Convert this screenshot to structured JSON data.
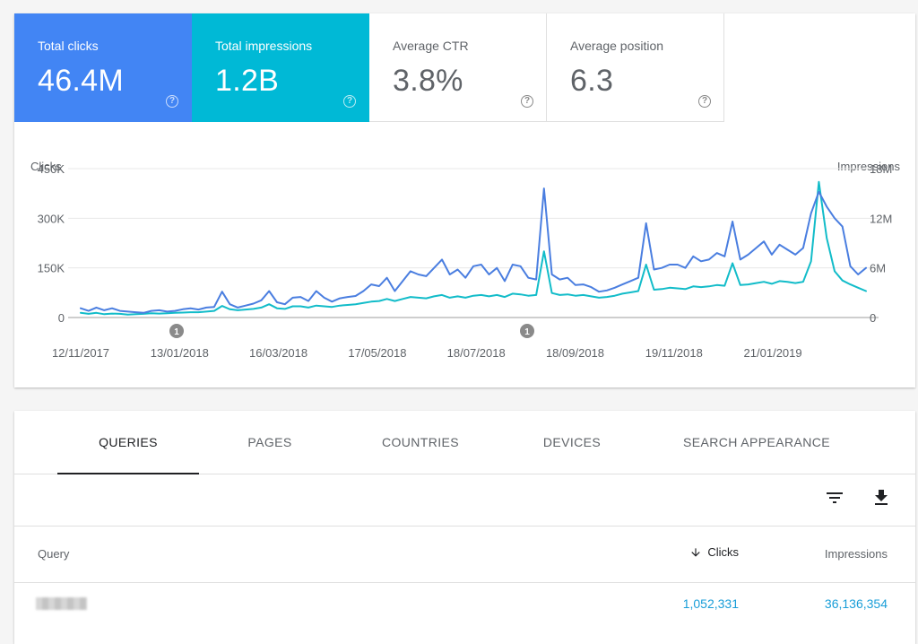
{
  "metrics": [
    {
      "label": "Total clicks",
      "value": "46.4M",
      "color": "#4285f4"
    },
    {
      "label": "Total impressions",
      "value": "1.2B",
      "color": "#00b9d6"
    },
    {
      "label": "Average CTR",
      "value": "3.8%"
    },
    {
      "label": "Average position",
      "value": "6.3"
    }
  ],
  "help_icon": "help-circle-icon",
  "annotation_label": "1",
  "chart_data": {
    "type": "line",
    "ylabel_left": "Clicks",
    "ylabel_right": "Impressions",
    "left_ticks": [
      "450K",
      "300K",
      "150K",
      "0"
    ],
    "right_ticks": [
      "18M",
      "12M",
      "6M",
      "0"
    ],
    "ylim_left": [
      0,
      450000
    ],
    "ylim_right": [
      0,
      18000000
    ],
    "x_ticks": [
      "12/11/2017",
      "13/01/2018",
      "16/03/2018",
      "17/05/2018",
      "18/07/2018",
      "18/09/2018",
      "19/11/2018",
      "21/01/2019"
    ],
    "grid": true,
    "annotations": [
      "13/01/2018",
      "18/08/2018"
    ],
    "series": [
      {
        "name": "Clicks",
        "axis": "left",
        "color": "#4a7ee0",
        "values": [
          28000,
          20000,
          30000,
          22000,
          28000,
          20000,
          18000,
          16000,
          14000,
          20000,
          22000,
          18000,
          20000,
          25000,
          28000,
          24000,
          30000,
          32000,
          78000,
          40000,
          30000,
          36000,
          42000,
          52000,
          80000,
          46000,
          40000,
          60000,
          62000,
          50000,
          80000,
          60000,
          48000,
          58000,
          62000,
          65000,
          80000,
          100000,
          95000,
          120000,
          80000,
          110000,
          140000,
          130000,
          125000,
          150000,
          175000,
          130000,
          145000,
          120000,
          155000,
          160000,
          130000,
          150000,
          110000,
          160000,
          155000,
          120000,
          115000,
          390000,
          130000,
          115000,
          120000,
          98000,
          100000,
          92000,
          78000,
          82000,
          90000,
          100000,
          110000,
          120000,
          285000,
          145000,
          150000,
          160000,
          160000,
          150000,
          185000,
          170000,
          175000,
          195000,
          185000,
          290000,
          175000,
          190000,
          210000,
          230000,
          190000,
          220000,
          205000,
          190000,
          210000,
          315000,
          380000,
          335000,
          300000,
          275000,
          155000,
          130000,
          150000
        ]
      },
      {
        "name": "Impressions",
        "axis": "right",
        "color": "#12bcc9",
        "values": [
          560000,
          440000,
          560000,
          400000,
          480000,
          440000,
          360000,
          400000,
          440000,
          520000,
          480000,
          520000,
          560000,
          600000,
          640000,
          640000,
          720000,
          800000,
          1400000,
          1000000,
          880000,
          960000,
          1040000,
          1200000,
          1600000,
          1120000,
          1040000,
          1360000,
          1360000,
          1200000,
          1440000,
          1360000,
          1280000,
          1440000,
          1520000,
          1600000,
          1760000,
          1920000,
          2000000,
          2240000,
          2000000,
          2240000,
          2480000,
          2400000,
          2320000,
          2560000,
          2720000,
          2400000,
          2560000,
          2400000,
          2640000,
          2720000,
          2560000,
          2720000,
          2480000,
          2880000,
          2800000,
          2640000,
          2720000,
          8000000,
          2960000,
          2720000,
          2800000,
          2640000,
          2720000,
          2560000,
          2400000,
          2480000,
          2640000,
          2880000,
          3040000,
          3200000,
          6400000,
          3360000,
          3440000,
          3600000,
          3520000,
          3440000,
          3760000,
          3680000,
          3760000,
          3920000,
          3840000,
          6560000,
          3920000,
          4000000,
          4160000,
          4320000,
          4080000,
          4400000,
          4320000,
          4160000,
          4320000,
          6800000,
          16400000,
          9600000,
          5600000,
          4480000,
          4000000,
          3600000,
          3200000
        ]
      }
    ]
  },
  "tabs": [
    {
      "label": "QUERIES",
      "active": true
    },
    {
      "label": "PAGES"
    },
    {
      "label": "COUNTRIES"
    },
    {
      "label": "DEVICES"
    },
    {
      "label": "SEARCH APPEARANCE"
    }
  ],
  "toolbar": {
    "filter_icon": "filter-icon",
    "download_icon": "download-icon"
  },
  "table": {
    "headers": {
      "query": "Query",
      "clicks": "Clicks",
      "impressions": "Impressions"
    },
    "sort_icon": "arrow-down-icon",
    "rows": [
      {
        "clicks": "1,052,331",
        "impressions": "36,136,354"
      }
    ]
  }
}
